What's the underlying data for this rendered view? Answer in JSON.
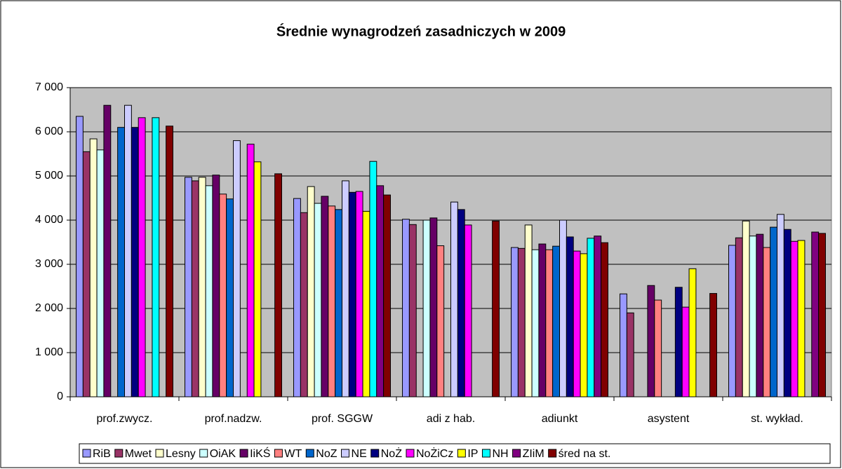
{
  "chart_data": {
    "type": "bar",
    "title": "Średnie wynagrodzeń zasadniczych w 2009",
    "categories": [
      "prof.zwycz.",
      "prof.nadzw.",
      "prof. SGGW",
      "adi z hab.",
      "adiunkt",
      "asystent",
      "st. wykład."
    ],
    "ylim": [
      0,
      7000
    ],
    "yticks": [
      0,
      {
        "value": 1000,
        "label": "1 000"
      },
      {
        "value": 2000,
        "label": "2 000"
      },
      {
        "value": 3000,
        "label": "3 000"
      },
      {
        "value": 4000,
        "label": "4 000"
      },
      {
        "value": 5000,
        "label": "5 000"
      },
      {
        "value": 6000,
        "label": "6 000"
      },
      {
        "value": 7000,
        "label": "7 000"
      }
    ],
    "grid": true,
    "legend": "bottom",
    "series": [
      {
        "name": "RiB",
        "color": "#9999ff",
        "values": [
          6350,
          4970,
          4490,
          4020,
          3380,
          2330,
          3430
        ]
      },
      {
        "name": "Mwet",
        "color": "#993366",
        "values": [
          5550,
          4890,
          4170,
          3900,
          3360,
          1900,
          3600
        ]
      },
      {
        "name": "Lesny",
        "color": "#ffffcc",
        "values": [
          5840,
          4970,
          4760,
          null,
          3890,
          null,
          3980
        ]
      },
      {
        "name": "OiAK",
        "color": "#ccffff",
        "values": [
          5590,
          4780,
          4380,
          4000,
          3330,
          null,
          3640
        ]
      },
      {
        "name": "IiKŚ",
        "color": "#660066",
        "values": [
          6600,
          5020,
          4540,
          4050,
          3460,
          2520,
          3680
        ]
      },
      {
        "name": "WT",
        "color": "#ff8080",
        "values": [
          null,
          4590,
          4320,
          3420,
          3330,
          2190,
          3380
        ]
      },
      {
        "name": "NoZ",
        "color": "#0066cc",
        "values": [
          6100,
          4480,
          4240,
          null,
          3410,
          null,
          3840
        ]
      },
      {
        "name": "NE",
        "color": "#ccccff",
        "values": [
          6600,
          5800,
          4890,
          4410,
          4000,
          null,
          4130
        ]
      },
      {
        "name": "NoŻ",
        "color": "#000080",
        "values": [
          6100,
          null,
          4630,
          4240,
          3620,
          2480,
          3790
        ]
      },
      {
        "name": "NoŻiCz",
        "color": "#ff00ff",
        "values": [
          6320,
          5720,
          4650,
          3890,
          3300,
          2030,
          3520
        ]
      },
      {
        "name": "IP",
        "color": "#ffff00",
        "values": [
          null,
          5320,
          4200,
          null,
          3240,
          2900,
          3540
        ]
      },
      {
        "name": "NH",
        "color": "#00ffff",
        "values": [
          6320,
          null,
          5330,
          null,
          3590,
          null,
          null
        ]
      },
      {
        "name": "ZIiM",
        "color": "#800080",
        "values": [
          null,
          null,
          4780,
          null,
          3640,
          null,
          3730
        ]
      },
      {
        "name": "śred na st.",
        "color": "#800000",
        "values": [
          6130,
          5050,
          4570,
          3980,
          3490,
          2340,
          3700
        ]
      }
    ]
  }
}
